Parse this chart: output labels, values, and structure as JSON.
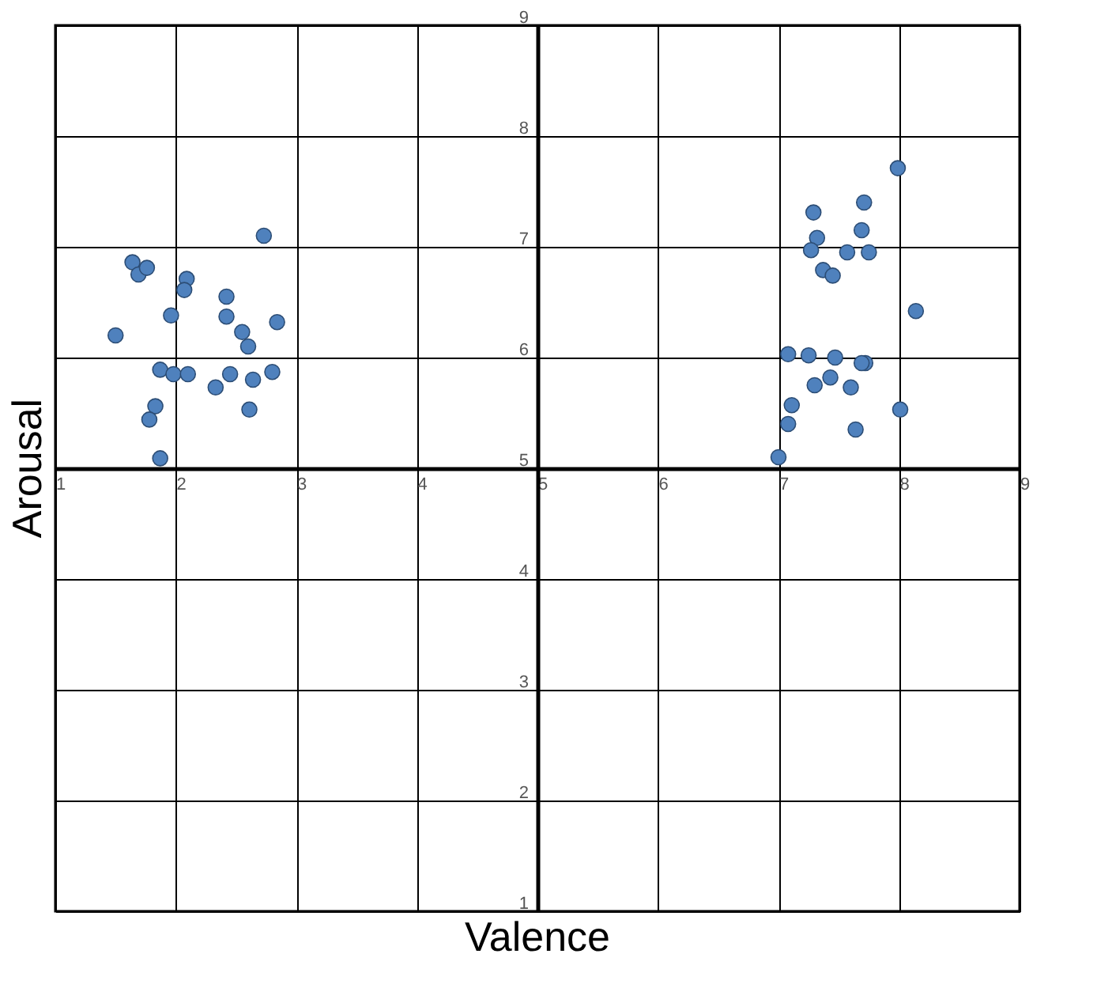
{
  "chart_data": {
    "type": "scatter",
    "xlabel": "Valence",
    "ylabel": "Arousal",
    "x": [
      2.73,
      1.64,
      1.69,
      1.76,
      2.09,
      2.07,
      2.42,
      1.96,
      2.42,
      2.84,
      1.5,
      2.55,
      2.6,
      1.87,
      1.98,
      2.1,
      2.45,
      2.33,
      2.64,
      2.8,
      1.83,
      1.78,
      2.61,
      1.87,
      7.99,
      7.29,
      7.71,
      7.69,
      7.32,
      7.27,
      7.57,
      7.75,
      7.37,
      7.45,
      8.14,
      7.08,
      7.25,
      7.47,
      7.72,
      7.69,
      7.43,
      7.3,
      7.6,
      7.11,
      8.01,
      7.08,
      7.64,
      7.0
    ],
    "values": [
      7.1,
      6.86,
      6.75,
      6.81,
      6.71,
      6.61,
      6.55,
      6.38,
      6.37,
      6.32,
      6.2,
      6.23,
      6.1,
      5.89,
      5.85,
      5.85,
      5.85,
      5.73,
      5.8,
      5.87,
      5.56,
      5.44,
      5.53,
      5.09,
      7.71,
      7.31,
      7.4,
      7.15,
      7.08,
      6.97,
      6.95,
      6.95,
      6.79,
      6.74,
      6.42,
      6.03,
      6.02,
      6.0,
      5.95,
      5.95,
      5.82,
      5.75,
      5.73,
      5.57,
      5.53,
      5.4,
      5.35,
      5.1
    ],
    "color": "#4f81bd",
    "marker": "circle",
    "xlim": [
      1,
      9
    ],
    "ylim": [
      1,
      9
    ],
    "xticks": [
      1,
      2,
      3,
      4,
      5,
      6,
      7,
      8,
      9
    ],
    "yticks": [
      1,
      2,
      3,
      4,
      5,
      6,
      7,
      8,
      9
    ],
    "grid": true
  }
}
